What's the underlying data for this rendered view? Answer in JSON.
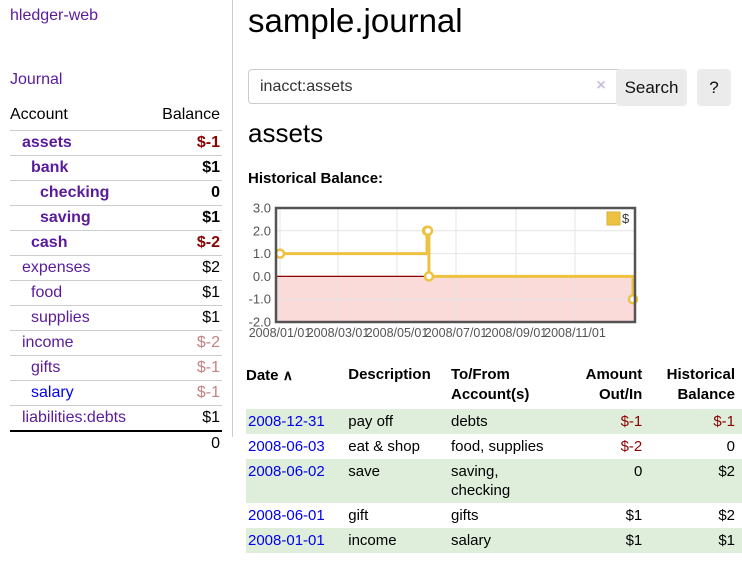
{
  "app": {
    "brand": "hledger-web",
    "nav_journal": "Journal"
  },
  "sidebar": {
    "header": {
      "account": "Account",
      "balance": "Balance"
    },
    "accounts": [
      {
        "name": "assets",
        "indent": 1,
        "bold": true,
        "balance": "$-1",
        "neg": "strong"
      },
      {
        "name": "bank",
        "indent": 2,
        "bold": true,
        "balance": "$1"
      },
      {
        "name": "checking",
        "indent": 3,
        "bold": true,
        "balance": "0"
      },
      {
        "name": "saving",
        "indent": 3,
        "bold": true,
        "balance": "$1"
      },
      {
        "name": "cash",
        "indent": 2,
        "bold": true,
        "balance": "$-2",
        "neg": "strong"
      },
      {
        "name": "expenses",
        "indent": 1,
        "bold": false,
        "balance": "$2"
      },
      {
        "name": "food",
        "indent": 2,
        "bold": false,
        "balance": "$1"
      },
      {
        "name": "supplies",
        "indent": 2,
        "bold": false,
        "balance": "$1"
      },
      {
        "name": "income",
        "indent": 1,
        "bold": false,
        "balance": "$-2",
        "neg": "muted"
      },
      {
        "name": "gifts",
        "indent": 2,
        "bold": false,
        "balance": "$-1",
        "neg": "muted"
      },
      {
        "name": "salary",
        "indent": 2,
        "bold": false,
        "balance": "$-1",
        "neg": "muted",
        "link": "blue"
      },
      {
        "name": "liabilities:debts",
        "indent": 1,
        "bold": false,
        "balance": "$1"
      }
    ],
    "total": "0"
  },
  "header": {
    "title": "sample.journal"
  },
  "search": {
    "value": "inacct:assets",
    "clear_icon": "×",
    "button_label": "Search",
    "help_label": "?"
  },
  "account_page": {
    "heading": "assets",
    "chart_label": "Historical Balance:"
  },
  "chart_data": {
    "type": "line",
    "title": "Historical Balance",
    "step": true,
    "series": [
      {
        "name": "$",
        "color": "#edc240",
        "points": [
          [
            "2008-01-01",
            1
          ],
          [
            "2008-06-01",
            2
          ],
          [
            "2008-06-02",
            2
          ],
          [
            "2008-06-03",
            0
          ],
          [
            "2008-12-31",
            -1
          ]
        ]
      }
    ],
    "x_ticks": [
      "2008/01/01",
      "2008/03/01",
      "2008/05/01",
      "2008/07/01",
      "2008/09/01",
      "2008/11/01"
    ],
    "y_ticks": [
      3.0,
      2.0,
      1.0,
      0.0,
      -1.0,
      -2.0
    ],
    "y_tick_labels": [
      "3.0",
      "2.0",
      "1.0",
      "0.0",
      "-1.0",
      "-2.0"
    ],
    "xlim": [
      "2008-01-01",
      "2008-12-31"
    ],
    "ylim": [
      -2,
      3
    ],
    "legend_label": "$",
    "legend_position": "top-right",
    "grid": true,
    "colors": {
      "line": "#edc240",
      "point_fill": "#ffffff",
      "border": "#545454",
      "gridline": "#e4e4e4",
      "negative_region": "#fbdada",
      "zero_line": "#8b0000",
      "tick_text": "#545454"
    }
  },
  "register": {
    "headers": {
      "date": "Date",
      "sort_icon": "∧",
      "description": "Description",
      "tofrom_line1": "To/From",
      "tofrom_line2": "Account(s)",
      "amount_line1": "Amount",
      "amount_line2": "Out/In",
      "balance_line1": "Historical",
      "balance_line2": "Balance"
    },
    "rows": [
      {
        "date": "2008-12-31",
        "description": "pay off",
        "accounts_lines": [
          "debts"
        ],
        "amount": "$-1",
        "amount_neg": true,
        "balance": "$-1",
        "balance_neg": true,
        "shaded": true
      },
      {
        "date": "2008-06-03",
        "description": "eat & shop",
        "accounts_lines": [
          "food, supplies"
        ],
        "amount": "$-2",
        "amount_neg": true,
        "balance": "0",
        "balance_neg": false,
        "shaded": false
      },
      {
        "date": "2008-06-02",
        "description": "save",
        "accounts_lines": [
          "saving,",
          "checking"
        ],
        "amount": "0",
        "amount_neg": false,
        "balance": "$2",
        "balance_neg": false,
        "shaded": true
      },
      {
        "date": "2008-06-01",
        "description": "gift",
        "accounts_lines": [
          "gifts"
        ],
        "amount": "$1",
        "amount_neg": false,
        "balance": "$2",
        "balance_neg": false,
        "shaded": false
      },
      {
        "date": "2008-01-01",
        "description": "income",
        "accounts_lines": [
          "salary"
        ],
        "amount": "$1",
        "amount_neg": false,
        "balance": "$1",
        "balance_neg": false,
        "shaded": true
      }
    ]
  }
}
